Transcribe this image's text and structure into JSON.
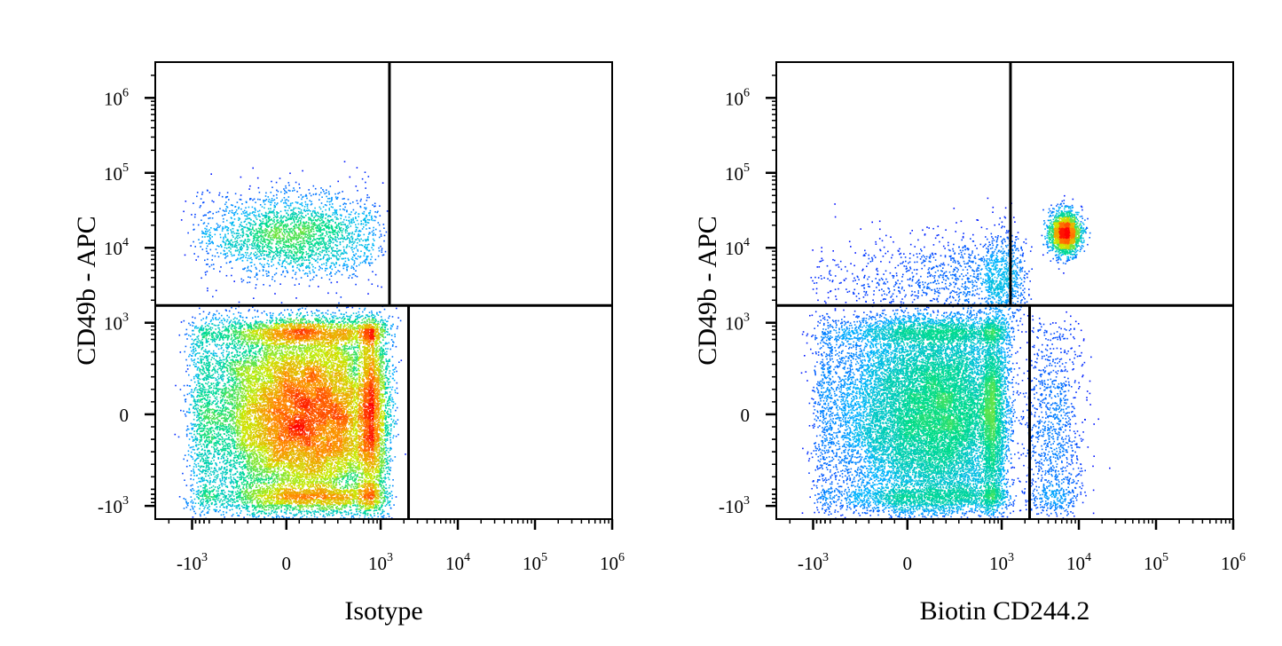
{
  "chart_data": [
    {
      "type": "scatter",
      "subtype": "flow-cytometry-pseudocolor-density",
      "xlabel": "Isotype",
      "ylabel": "CD49b - APC",
      "x_scale": "biexponential",
      "y_scale": "biexponential",
      "xlim": [
        -3000,
        1000000
      ],
      "ylim": [
        -1500,
        3000000
      ],
      "x_ticks": [
        {
          "value": -1000,
          "base": "-10",
          "exp": "3"
        },
        {
          "value": 0,
          "base": "0",
          "exp": ""
        },
        {
          "value": 1000,
          "base": "10",
          "exp": "3"
        },
        {
          "value": 10000,
          "base": "10",
          "exp": "4"
        },
        {
          "value": 100000,
          "base": "10",
          "exp": "5"
        },
        {
          "value": 1000000,
          "base": "10",
          "exp": "6"
        }
      ],
      "y_ticks": [
        {
          "value": 1000000,
          "base": "10",
          "exp": "6"
        },
        {
          "value": 100000,
          "base": "10",
          "exp": "5"
        },
        {
          "value": 10000,
          "base": "10",
          "exp": "4"
        },
        {
          "value": 1000,
          "base": "10",
          "exp": "3"
        },
        {
          "value": 0,
          "base": "0",
          "exp": ""
        },
        {
          "value": -1000,
          "base": "-10",
          "exp": "3"
        }
      ],
      "quadrant_gate": {
        "y_split": 1700,
        "x_split_upper": 1300,
        "x_split_lower": 2300
      },
      "populations": [
        {
          "x_center": 150,
          "y_center": 0,
          "x_spread": 450,
          "y_spread": 500,
          "weight": 0.89,
          "density": "high"
        },
        {
          "x_center": 50,
          "y_center": 15000,
          "x_spread": 350,
          "y_spread": 0.28,
          "weight": 0.11,
          "density": "medium"
        }
      ],
      "grid": false,
      "legend": "none"
    },
    {
      "type": "scatter",
      "subtype": "flow-cytometry-pseudocolor-density",
      "xlabel": "Biotin CD244.2",
      "ylabel": "CD49b - APC",
      "x_scale": "biexponential",
      "y_scale": "biexponential",
      "xlim": [
        -3000,
        1000000
      ],
      "ylim": [
        -1500,
        3000000
      ],
      "x_ticks": [
        {
          "value": -1000,
          "base": "-10",
          "exp": "3"
        },
        {
          "value": 0,
          "base": "0",
          "exp": ""
        },
        {
          "value": 1000,
          "base": "10",
          "exp": "3"
        },
        {
          "value": 10000,
          "base": "10",
          "exp": "4"
        },
        {
          "value": 100000,
          "base": "10",
          "exp": "5"
        },
        {
          "value": 1000000,
          "base": "10",
          "exp": "6"
        }
      ],
      "y_ticks": [
        {
          "value": 1000000,
          "base": "10",
          "exp": "6"
        },
        {
          "value": 100000,
          "base": "10",
          "exp": "5"
        },
        {
          "value": 10000,
          "base": "10",
          "exp": "4"
        },
        {
          "value": 1000,
          "base": "10",
          "exp": "3"
        },
        {
          "value": 0,
          "base": "0",
          "exp": ""
        },
        {
          "value": -1000,
          "base": "-10",
          "exp": "3"
        }
      ],
      "quadrant_gate": {
        "y_split": 1700,
        "x_split_upper": 1300,
        "x_split_lower": 2300
      },
      "populations": [
        {
          "x_center": 200,
          "y_center": 0,
          "x_spread": 420,
          "y_spread": 500,
          "weight": 0.8,
          "density": "high"
        },
        {
          "x_center": 4500,
          "y_center": -200,
          "x_spread": 0.2,
          "y_spread": 480,
          "weight": 0.05,
          "density": "low"
        },
        {
          "x_center": 600,
          "y_center": 4000,
          "x_spread": 600,
          "y_spread": 0.3,
          "weight": 0.07,
          "density": "low"
        },
        {
          "x_center": 6500,
          "y_center": 16000,
          "x_spread": 0.1,
          "y_spread": 0.15,
          "weight": 0.08,
          "density": "medium"
        }
      ],
      "grid": false,
      "legend": "none"
    }
  ]
}
